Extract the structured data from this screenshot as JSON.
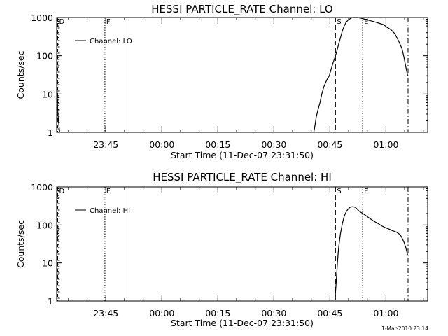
{
  "footer": {
    "timestamp": "1-Mar-2010 23:14"
  },
  "chart_data": [
    {
      "type": "line",
      "title": "HESSI PARTICLE_RATE Channel: LO",
      "xlabel": "Start Time (11-Dec-07 23:31:50)",
      "ylabel": "Counts/sec",
      "legend": {
        "label": "Channel: LO",
        "placement": "top-left"
      },
      "y_scale": "log",
      "ylim": [
        1,
        1000
      ],
      "y_ticks": [
        {
          "value": 1,
          "label": "1"
        },
        {
          "value": 10,
          "label": "10"
        },
        {
          "value": 100,
          "label": "100"
        },
        {
          "value": 1000,
          "label": "1000"
        }
      ],
      "xlim": [
        "23:31:50",
        "01:11:10"
      ],
      "x_ticks": [
        {
          "value": "23:45",
          "label": "23:45"
        },
        {
          "value": "00:00",
          "label": "00:00"
        },
        {
          "value": "00:15",
          "label": "00:15"
        },
        {
          "value": "00:30",
          "label": "00:30"
        },
        {
          "value": "00:45",
          "label": "00:45"
        },
        {
          "value": "01:00",
          "label": "01:00"
        }
      ],
      "markers": [
        {
          "time": "23:31:50",
          "label": "D",
          "style": "dashed-ticks"
        },
        {
          "time": "23:44:45",
          "label": "F",
          "style": "dotted"
        },
        {
          "time": "23:50:40",
          "label": "",
          "style": "solid"
        },
        {
          "time": "00:46:30",
          "label": "S",
          "style": "dashed"
        },
        {
          "time": "00:53:45",
          "label": "E",
          "style": "dotted"
        },
        {
          "time": "01:05:55",
          "label": "",
          "style": "dash-dot"
        }
      ],
      "series": [
        {
          "name": "Channel: LO",
          "segments": [
            [
              [
                "23:31:50",
                50
              ],
              [
                "23:32:00",
                8
              ],
              [
                "23:32:10",
                3
              ],
              [
                "23:32:30",
                1.3
              ],
              [
                "23:32:40",
                1
              ]
            ],
            [
              [
                "00:40:40",
                1
              ],
              [
                "00:41:00",
                1.5
              ],
              [
                "00:41:20",
                2.5
              ],
              [
                "00:41:50",
                4
              ],
              [
                "00:42:20",
                6
              ],
              [
                "00:42:50",
                10
              ],
              [
                "00:43:20",
                15
              ],
              [
                "00:43:50",
                20
              ],
              [
                "00:44:20",
                25
              ],
              [
                "00:44:50",
                30
              ],
              [
                "00:45:20",
                45
              ],
              [
                "00:45:50",
                65
              ],
              [
                "00:46:20",
                90
              ],
              [
                "00:46:50",
                130
              ],
              [
                "00:47:20",
                200
              ],
              [
                "00:47:50",
                300
              ],
              [
                "00:48:20",
                450
              ],
              [
                "00:48:50",
                600
              ],
              [
                "00:49:20",
                750
              ],
              [
                "00:49:50",
                850
              ],
              [
                "00:50:20",
                920
              ],
              [
                "00:50:50",
                980
              ],
              [
                "00:51:20",
                1000
              ],
              [
                "00:51:50",
                1000
              ],
              [
                "00:52:20",
                1000
              ],
              [
                "00:52:50",
                980
              ],
              [
                "00:53:20",
                960
              ],
              [
                "00:54:20",
                900
              ],
              [
                "00:55:20",
                850
              ],
              [
                "00:56:20",
                800
              ],
              [
                "00:57:20",
                750
              ],
              [
                "00:58:20",
                700
              ],
              [
                "00:59:20",
                650
              ],
              [
                "01:00:20",
                550
              ],
              [
                "01:01:20",
                480
              ],
              [
                "01:02:20",
                380
              ],
              [
                "01:03:20",
                250
              ],
              [
                "01:04:20",
                150
              ],
              [
                "01:04:50",
                90
              ],
              [
                "01:05:20",
                50
              ],
              [
                "01:05:50",
                30
              ]
            ]
          ]
        }
      ]
    },
    {
      "type": "line",
      "title": "HESSI PARTICLE_RATE Channel: HI",
      "xlabel": "Start Time (11-Dec-07 23:31:50)",
      "ylabel": "Counts/sec",
      "legend": {
        "label": "Channel: HI",
        "placement": "top-left"
      },
      "y_scale": "log",
      "ylim": [
        1,
        1000
      ],
      "y_ticks": [
        {
          "value": 1,
          "label": "1"
        },
        {
          "value": 10,
          "label": "10"
        },
        {
          "value": 100,
          "label": "100"
        },
        {
          "value": 1000,
          "label": "1000"
        }
      ],
      "xlim": [
        "23:31:50",
        "01:11:10"
      ],
      "x_ticks": [
        {
          "value": "23:45",
          "label": "23:45"
        },
        {
          "value": "00:00",
          "label": "00:00"
        },
        {
          "value": "00:15",
          "label": "00:15"
        },
        {
          "value": "00:30",
          "label": "00:30"
        },
        {
          "value": "00:45",
          "label": "00:45"
        },
        {
          "value": "01:00",
          "label": "01:00"
        }
      ],
      "markers": [
        {
          "time": "23:31:50",
          "label": "D",
          "style": "dashed-ticks"
        },
        {
          "time": "23:44:45",
          "label": "F",
          "style": "dotted"
        },
        {
          "time": "23:50:40",
          "label": "",
          "style": "solid"
        },
        {
          "time": "00:46:30",
          "label": "S",
          "style": "dashed"
        },
        {
          "time": "00:53:45",
          "label": "E",
          "style": "dotted"
        },
        {
          "time": "01:05:55",
          "label": "",
          "style": "dash-dot"
        }
      ],
      "series": [
        {
          "name": "Channel: HI",
          "segments": [
            [
              [
                "00:46:20",
                1
              ],
              [
                "00:46:40",
                3
              ],
              [
                "00:47:00",
                10
              ],
              [
                "00:47:20",
                25
              ],
              [
                "00:47:50",
                60
              ],
              [
                "00:48:20",
                110
              ],
              [
                "00:48:50",
                170
              ],
              [
                "00:49:20",
                220
              ],
              [
                "00:49:50",
                260
              ],
              [
                "00:50:20",
                290
              ],
              [
                "00:50:50",
                300
              ],
              [
                "00:51:20",
                300
              ],
              [
                "00:51:50",
                290
              ],
              [
                "00:52:20",
                260
              ],
              [
                "00:52:50",
                230
              ],
              [
                "00:53:50",
                200
              ],
              [
                "00:54:50",
                170
              ],
              [
                "00:55:50",
                145
              ],
              [
                "00:56:50",
                125
              ],
              [
                "00:57:50",
                110
              ],
              [
                "00:58:50",
                95
              ],
              [
                "00:59:50",
                85
              ],
              [
                "01:00:50",
                78
              ],
              [
                "01:01:50",
                70
              ],
              [
                "01:02:50",
                65
              ],
              [
                "01:03:50",
                55
              ],
              [
                "01:04:20",
                45
              ],
              [
                "01:04:50",
                35
              ],
              [
                "01:05:20",
                25
              ],
              [
                "01:05:50",
                16
              ]
            ]
          ]
        }
      ]
    }
  ]
}
